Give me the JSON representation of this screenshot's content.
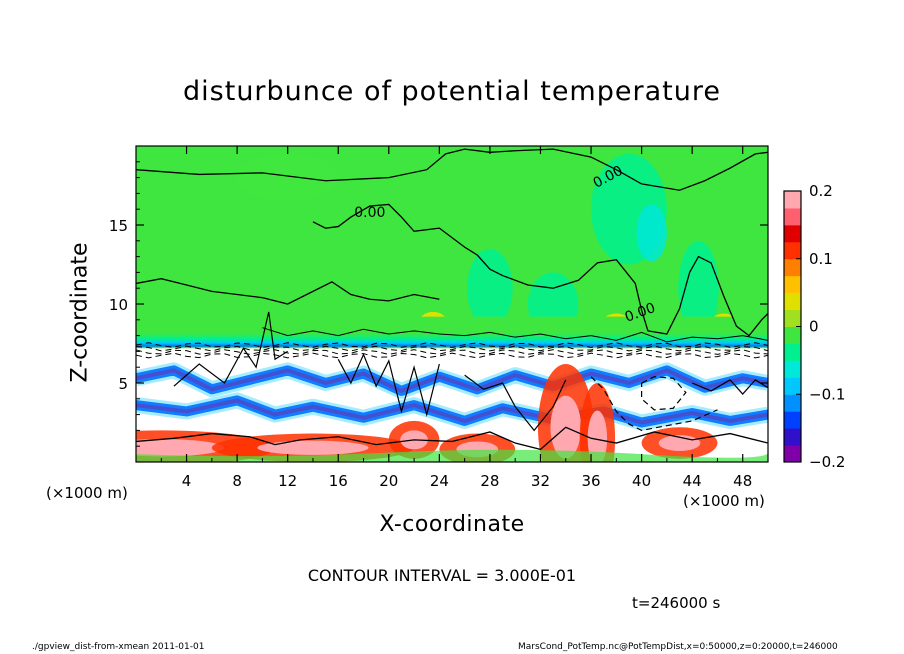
{
  "chart_data": {
    "type": "heatmap",
    "title": "disturbunce of potential temperature",
    "xlabel": "X-coordinate",
    "ylabel": "Z-coordinate",
    "x_unit": "(×1000 m)",
    "xlim": [
      0,
      50
    ],
    "ylim": [
      0,
      20
    ],
    "x_ticks": [
      4,
      8,
      12,
      16,
      20,
      24,
      28,
      32,
      36,
      40,
      44,
      48
    ],
    "y_ticks": [
      5,
      10,
      15
    ],
    "colorbar": {
      "range": [
        -0.2,
        0.2
      ],
      "tick_values": [
        0.2,
        0.1,
        0,
        -0.1,
        -0.2
      ],
      "tick_labels": [
        "0.2",
        "0.1",
        "0",
        "−0.1",
        "−0.2"
      ],
      "colors": [
        "#7f00a8",
        "#3010c8",
        "#0040ff",
        "#0090ff",
        "#00c8ff",
        "#00e8d8",
        "#00f090",
        "#40e640",
        "#a0e020",
        "#e0e000",
        "#ffc000",
        "#ff8000",
        "#ff3000",
        "#e00000",
        "#ff6070",
        "#ffa8b0"
      ]
    },
    "contour_labels": [
      "0.00",
      "0.00",
      "0.00"
    ],
    "contour_interval": "CONTOUR INTERVAL = 3.000E-01",
    "time": "t=246000 s"
  },
  "footer": {
    "left": "./gpview_dist-from-xmean  2011-01-01",
    "right": "MarsCond_PotTemp.nc@PotTempDist,x=0:50000,z=0:20000,t=246000"
  }
}
